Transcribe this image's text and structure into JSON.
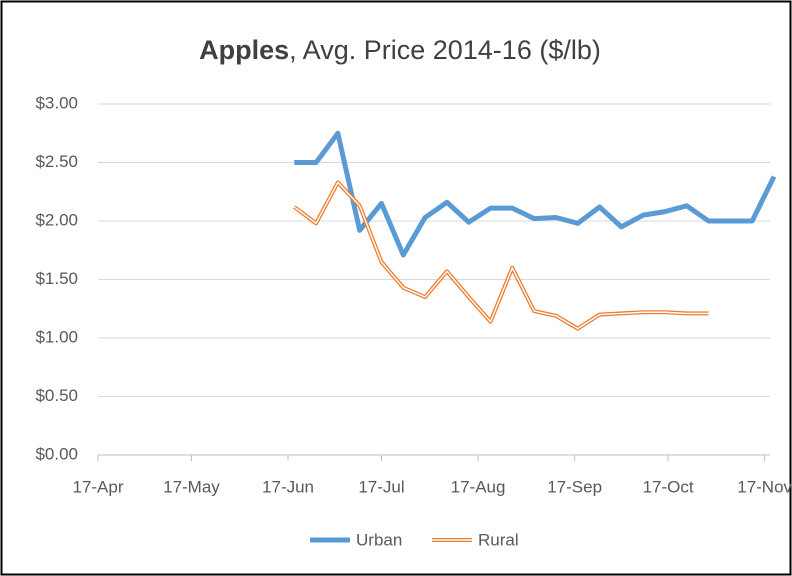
{
  "chart_data": {
    "type": "line",
    "title": {
      "bold": "Apples",
      "rest": ", Avg. Price 2014-16 ($/lb)"
    },
    "x": [
      "19-Jun",
      "26-Jun",
      "3-Jul",
      "10-Jul",
      "17-Jul",
      "24-Jul",
      "31-Jul",
      "7-Aug",
      "14-Aug",
      "21-Aug",
      "28-Aug",
      "4-Sep",
      "11-Sep",
      "18-Sep",
      "25-Sep",
      "2-Oct",
      "9-Oct",
      "16-Oct",
      "23-Oct",
      "30-Oct",
      "6-Nov",
      "13-Nov",
      "20-Nov"
    ],
    "series": [
      {
        "name": "Urban",
        "color": "#5b9bd5",
        "values": [
          2.5,
          2.5,
          2.75,
          1.92,
          2.15,
          1.71,
          2.03,
          2.16,
          1.99,
          2.11,
          2.11,
          2.02,
          2.03,
          1.98,
          2.12,
          1.95,
          2.05,
          2.08,
          2.13,
          2.0,
          2.0,
          2.0,
          2.38
        ]
      },
      {
        "name": "Rural",
        "color": "#ed7d31",
        "values": [
          2.12,
          1.98,
          2.33,
          2.13,
          1.65,
          1.43,
          1.35,
          1.57,
          1.35,
          1.14,
          1.6,
          1.23,
          1.19,
          1.08,
          1.2,
          1.21,
          1.22,
          1.22,
          1.21,
          1.21,
          null,
          null,
          null
        ]
      }
    ],
    "xlim": [
      "17-Apr",
      "20-Nov"
    ],
    "xticks": [
      "17-Apr",
      "17-May",
      "17-Jun",
      "17-Jul",
      "17-Aug",
      "17-Sep",
      "17-Oct",
      "17-Nov"
    ],
    "ylim": [
      0,
      3
    ],
    "yticks": [
      {
        "value": 0,
        "label": "$0.00"
      },
      {
        "value": 0.5,
        "label": "$0.50"
      },
      {
        "value": 1,
        "label": "$1.00"
      },
      {
        "value": 1.5,
        "label": "$1.50"
      },
      {
        "value": 2,
        "label": "$2.00"
      },
      {
        "value": 2.5,
        "label": "$2.50"
      },
      {
        "value": 3,
        "label": "$3.00"
      }
    ],
    "grid": true,
    "legend": "bottom"
  }
}
